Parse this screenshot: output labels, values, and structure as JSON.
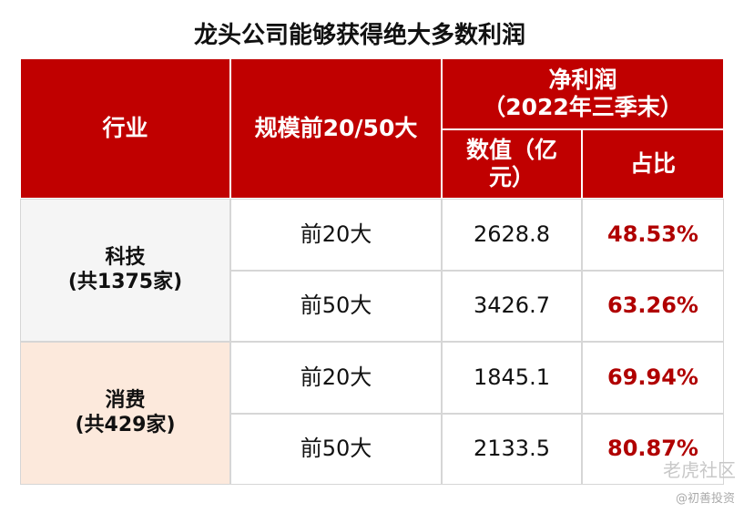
{
  "title": "龙头公司能够获得绝大多数利润",
  "table": {
    "header": {
      "industry": "行业",
      "scale": "规模前20/50大",
      "profit": "净利润\n（2022年三季末）",
      "value": "数值（亿\n元）",
      "share": "占比"
    },
    "groups": [
      {
        "name": "科技\n(共1375家)",
        "rows": [
          [
            "前20大",
            "2628.8",
            "48.53%"
          ],
          [
            "前50大",
            "3426.7",
            "63.26%"
          ]
        ]
      },
      {
        "name": "消费\n(共429家)",
        "rows": [
          [
            "前20大",
            "1845.1",
            "69.94%"
          ],
          [
            "前50大",
            "2133.5",
            "80.87%"
          ]
        ]
      }
    ]
  },
  "watermark": {
    "brand": "老虎社区",
    "author": "@初善投资"
  }
}
